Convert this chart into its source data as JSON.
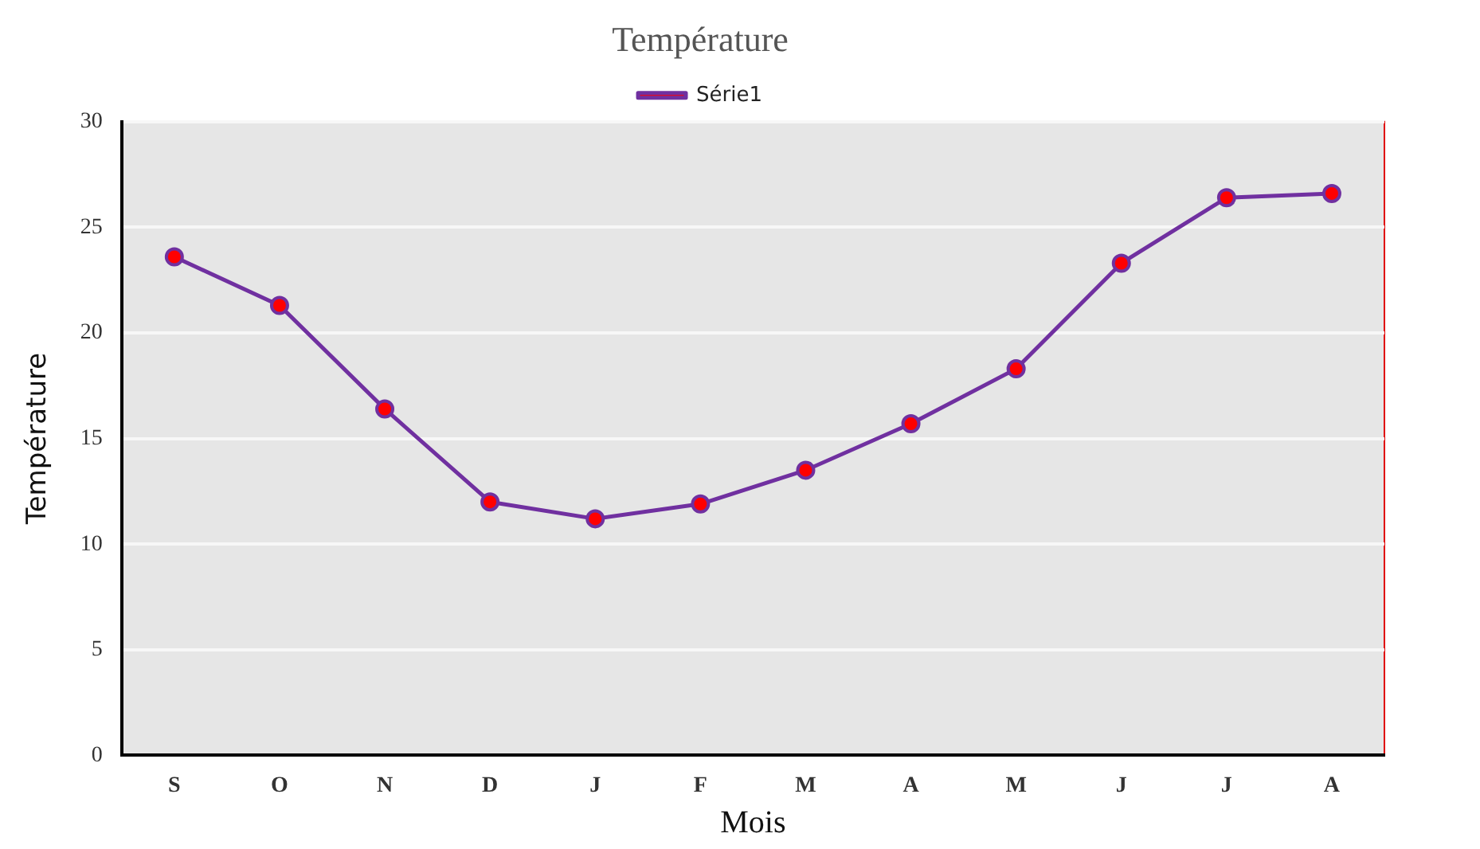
{
  "chart_data": {
    "type": "line",
    "title": "Température",
    "xlabel": "Mois",
    "ylabel": "Température",
    "categories": [
      "S",
      "O",
      "N",
      "D",
      "J",
      "F",
      "M",
      "A",
      "M",
      "J",
      "J",
      "A"
    ],
    "series": [
      {
        "name": "Série1",
        "color": "#7030a0",
        "values": [
          23.6,
          21.3,
          16.4,
          12.0,
          11.2,
          11.9,
          13.5,
          15.7,
          18.3,
          23.3,
          26.4,
          26.6
        ]
      }
    ],
    "ylim": [
      0,
      30
    ],
    "yticks": [
      0,
      5,
      10,
      15,
      20,
      25,
      30
    ],
    "grid": "y",
    "legend": "top",
    "marker": "circle",
    "line_style": "solid"
  }
}
